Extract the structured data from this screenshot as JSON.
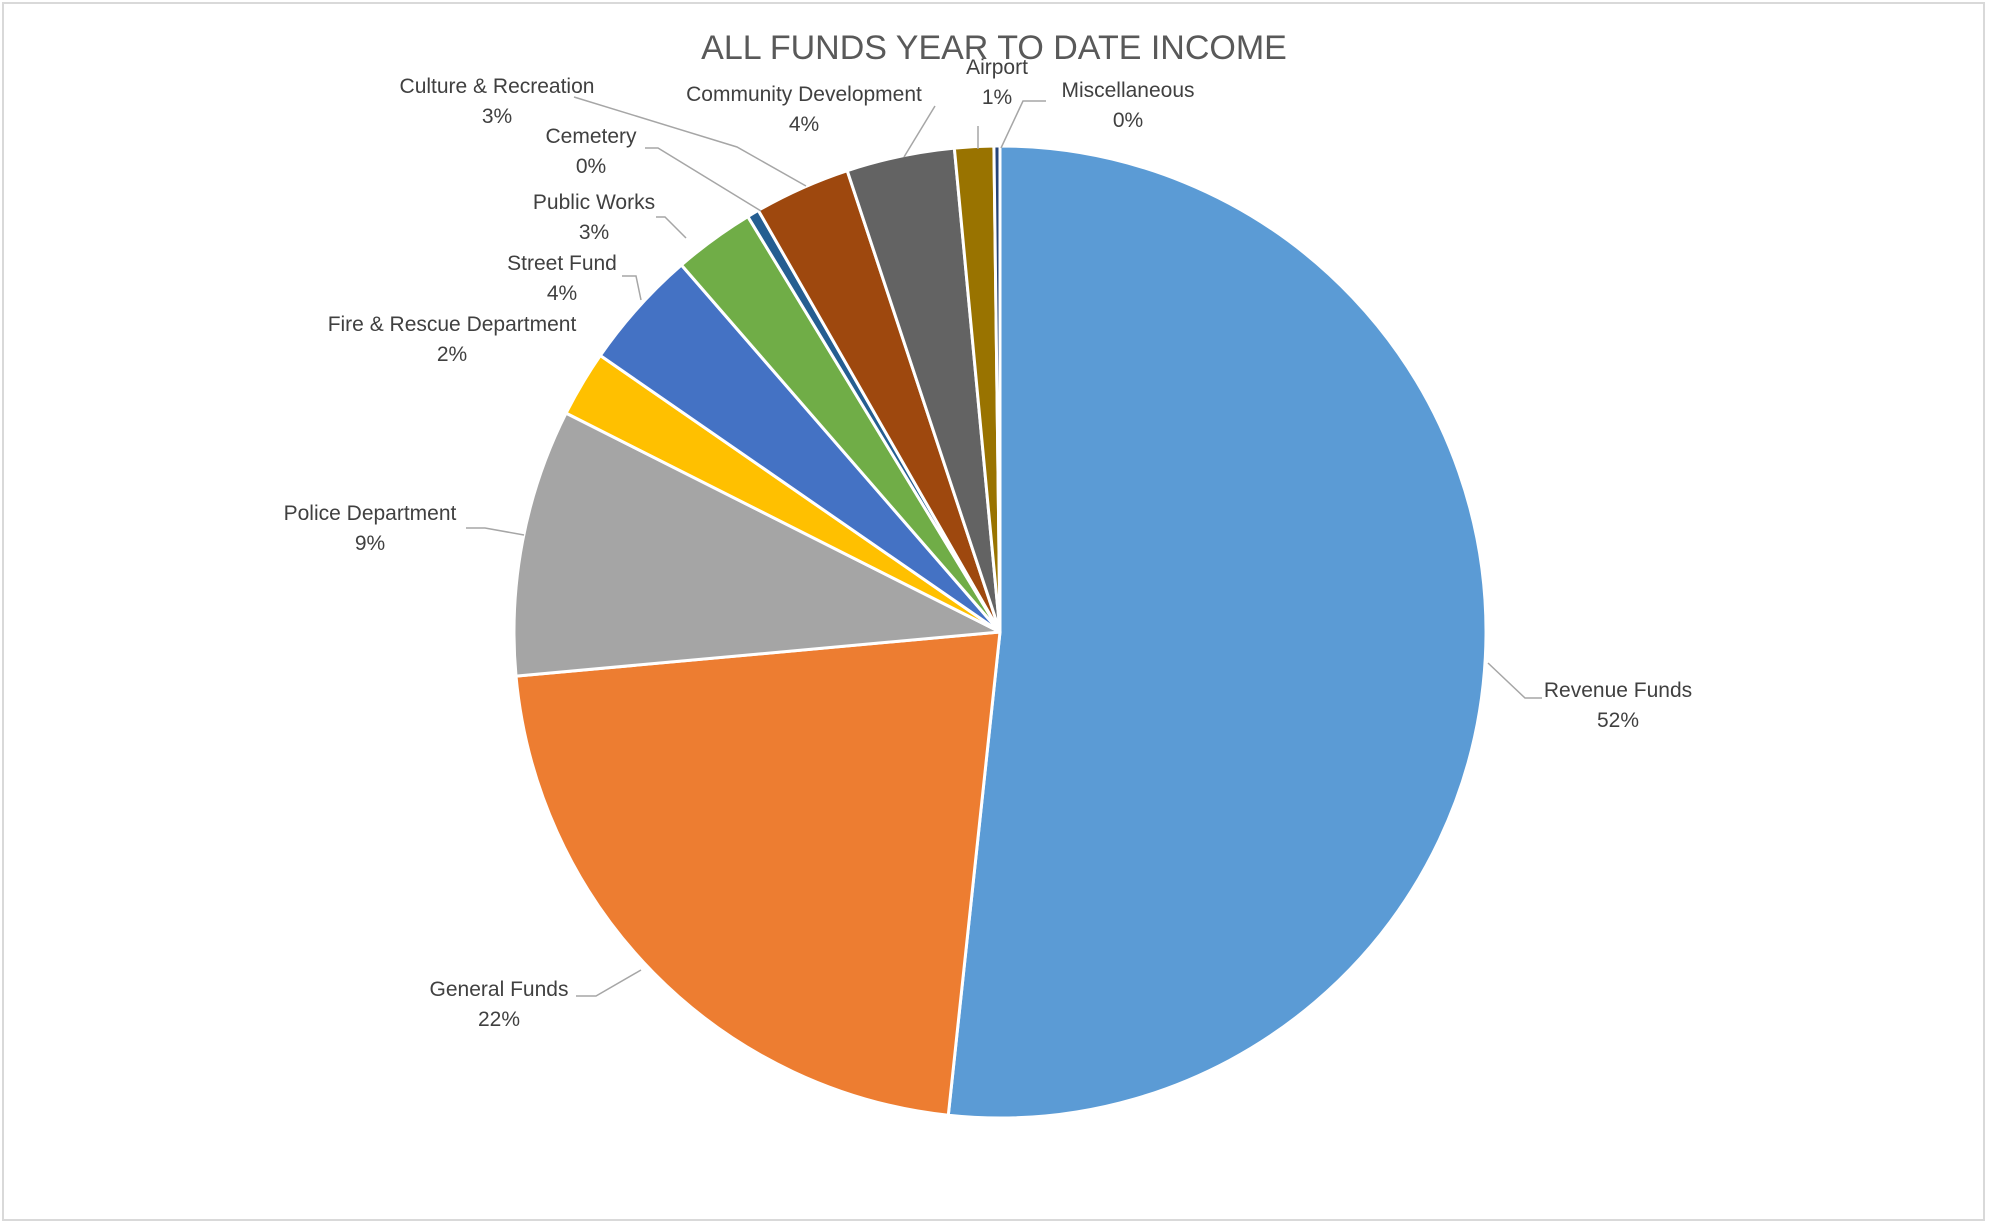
{
  "chart_data": {
    "type": "pie",
    "title": "ALL FUNDS YEAR TO DATE INCOME",
    "legend": "none",
    "slices": [
      {
        "label": "Revenue Funds",
        "value": 51.8,
        "percent_label": "52%",
        "color": "#5B9BD5"
      },
      {
        "label": "General Funds",
        "value": 21.9,
        "percent_label": "22%",
        "color": "#ED7D31"
      },
      {
        "label": "Police Department",
        "value": 8.9,
        "percent_label": "9%",
        "color": "#A5A5A5"
      },
      {
        "label": "Fire & Rescue Department",
        "value": 2.2,
        "percent_label": "2%",
        "color": "#FFC000"
      },
      {
        "label": "Street Fund",
        "value": 4.0,
        "percent_label": "4%",
        "color": "#4472C4"
      },
      {
        "label": "Public Works",
        "value": 2.7,
        "percent_label": "3%",
        "color": "#70AD47"
      },
      {
        "label": "Cemetery",
        "value": 0.4,
        "percent_label": "0%",
        "color": "#255E91"
      },
      {
        "label": "Culture & Recreation",
        "value": 3.2,
        "percent_label": "3%",
        "color": "#9E480E"
      },
      {
        "label": "Community Development",
        "value": 3.6,
        "percent_label": "4%",
        "color": "#636363"
      },
      {
        "label": "Airport",
        "value": 1.3,
        "percent_label": "1%",
        "color": "#997300"
      },
      {
        "label": "Miscellaneous",
        "value": 0.2,
        "percent_label": "0%",
        "color": "#264478"
      }
    ]
  }
}
